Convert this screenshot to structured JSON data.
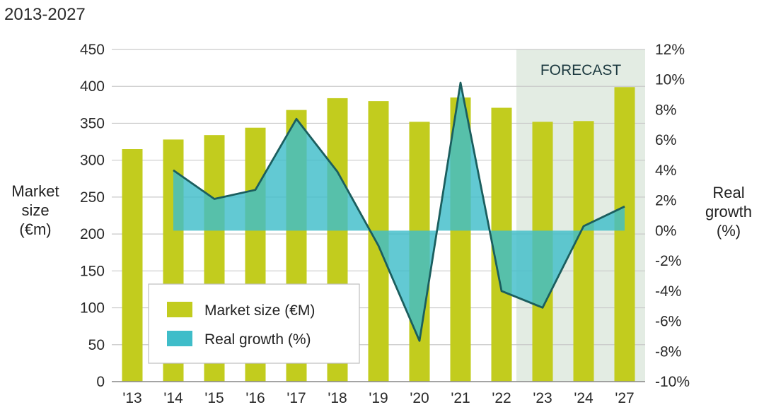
{
  "chart_data": {
    "type": "bar",
    "subtitle": "2013-2027",
    "categories": [
      "'13",
      "'14",
      "'15",
      "'16",
      "'17",
      "'18",
      "'19",
      "'20",
      "'21",
      "'22",
      "'23",
      "'24",
      "'27"
    ],
    "forecast_label": "FORECAST",
    "forecast_categories": [
      "'23",
      "'24",
      "'27"
    ],
    "series": [
      {
        "name": "Market size (€M)",
        "type": "bar",
        "axis": "left",
        "color": "#c2cc1e",
        "values": [
          315,
          328,
          334,
          344,
          368,
          384,
          380,
          352,
          385,
          371,
          352,
          353,
          399
        ]
      },
      {
        "name": "Real growth (%)",
        "type": "area",
        "axis": "right",
        "color": "#3fbdc9",
        "line_color": "#1b5e5e",
        "values": [
          null,
          4.0,
          2.1,
          2.7,
          7.4,
          3.9,
          -1.0,
          -7.3,
          9.8,
          -4.0,
          -5.1,
          0.3,
          1.6
        ]
      }
    ],
    "left_axis": {
      "label_lines": [
        "Market",
        "size",
        "(€m)"
      ],
      "ylim": [
        0,
        450
      ],
      "ticks": [
        "0",
        "50",
        "100",
        "150",
        "200",
        "250",
        "300",
        "350",
        "400",
        "450"
      ]
    },
    "right_axis": {
      "label_lines": [
        "Real",
        "growth",
        "(%)"
      ],
      "ylim": [
        -10,
        12
      ],
      "ticks": [
        "-10%",
        "-8%",
        "-6%",
        "-4%",
        "-2%",
        "0%",
        "2%",
        "4%",
        "6%",
        "8%",
        "10%",
        "12%"
      ]
    },
    "grid": true,
    "legend_position": "bottom-left"
  }
}
